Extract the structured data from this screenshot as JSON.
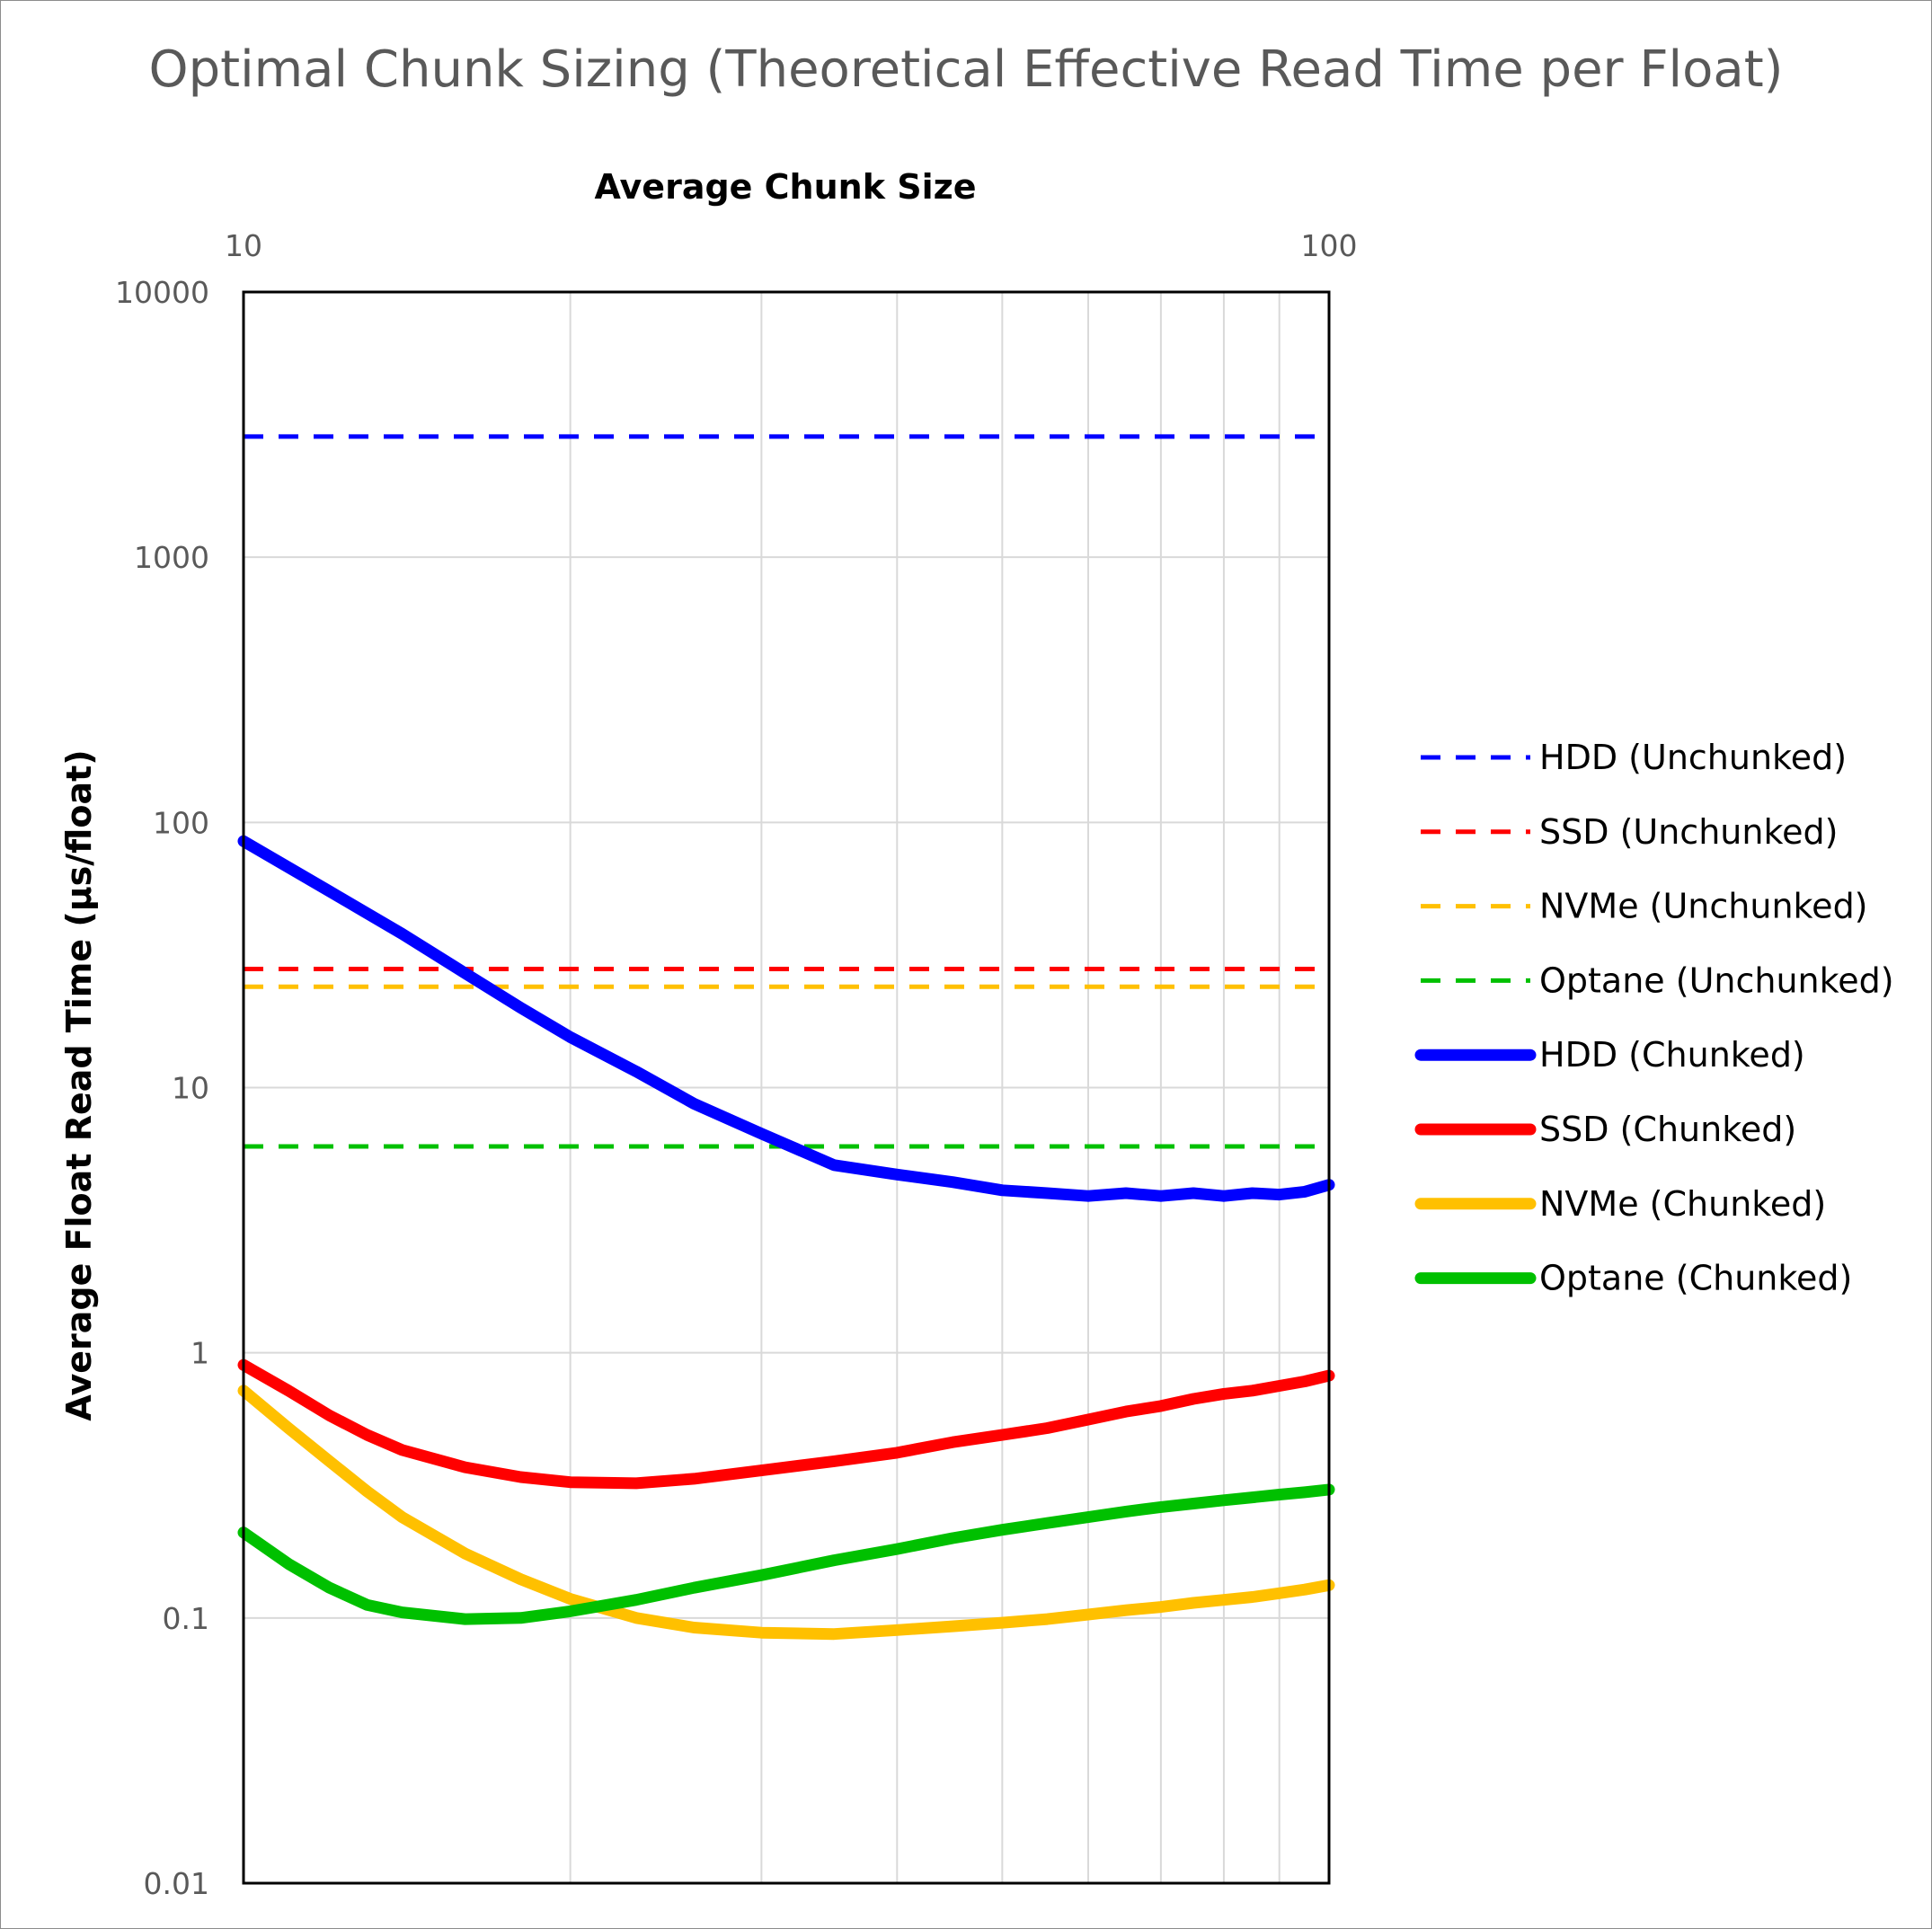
{
  "chart_data": {
    "type": "line",
    "title": "Optimal Chunk Sizing (Theoretical Effective Read Time per Float)",
    "xlabel": "Average Chunk Size",
    "ylabel": "Average Float Read Time (µs/float)",
    "x_scale": "log",
    "y_scale": "log",
    "xlim": [
      10,
      100
    ],
    "ylim": [
      0.01,
      10000
    ],
    "x_ticks": [
      "10",
      "100"
    ],
    "y_ticks": [
      "0.01",
      "0.1",
      "1",
      "10",
      "100",
      "1000",
      "10000"
    ],
    "x_axis_position": "top",
    "grid": true,
    "legend_position": "right",
    "series": [
      {
        "name": "HDD (Unchunked)",
        "color": "#0000ff",
        "style": "dashed",
        "x": [
          10,
          100
        ],
        "y": [
          2850,
          2850
        ]
      },
      {
        "name": "SSD (Unchunked)",
        "color": "#ff0000",
        "style": "dashed",
        "x": [
          10,
          100
        ],
        "y": [
          28,
          28
        ]
      },
      {
        "name": "NVMe (Unchunked)",
        "color": "#ffc000",
        "style": "dashed",
        "x": [
          10,
          100
        ],
        "y": [
          24,
          24
        ]
      },
      {
        "name": "Optane (Unchunked)",
        "color": "#00c000",
        "style": "dashed",
        "x": [
          10,
          100
        ],
        "y": [
          6,
          6
        ]
      },
      {
        "name": "HDD (Chunked)",
        "color": "#0000ff",
        "style": "solid",
        "x": [
          10,
          12,
          14,
          16,
          18,
          20,
          23,
          26,
          30,
          35,
          40,
          45,
          50,
          55,
          60,
          65,
          70,
          75,
          80,
          85,
          90,
          95,
          100
        ],
        "y": [
          85,
          55,
          38,
          27,
          20,
          15.5,
          11.5,
          8.7,
          6.7,
          5.1,
          4.7,
          4.4,
          4.1,
          4.0,
          3.9,
          4.0,
          3.9,
          4.0,
          3.9,
          4.0,
          3.95,
          4.05,
          4.3
        ]
      },
      {
        "name": "SSD (Chunked)",
        "color": "#ff0000",
        "style": "solid",
        "x": [
          10,
          11,
          12,
          13,
          14,
          16,
          18,
          20,
          23,
          26,
          30,
          35,
          40,
          45,
          50,
          55,
          60,
          65,
          70,
          75,
          80,
          85,
          90,
          95,
          100
        ],
        "y": [
          0.9,
          0.72,
          0.58,
          0.49,
          0.43,
          0.37,
          0.34,
          0.325,
          0.322,
          0.335,
          0.36,
          0.39,
          0.42,
          0.46,
          0.49,
          0.52,
          0.56,
          0.6,
          0.63,
          0.67,
          0.7,
          0.72,
          0.75,
          0.78,
          0.82
        ]
      },
      {
        "name": "NVMe (Chunked)",
        "color": "#ffc000",
        "style": "solid",
        "x": [
          10,
          11,
          12,
          13,
          14,
          16,
          18,
          20,
          23,
          26,
          30,
          35,
          40,
          45,
          50,
          55,
          60,
          65,
          70,
          75,
          80,
          85,
          90,
          95,
          100
        ],
        "y": [
          0.72,
          0.52,
          0.39,
          0.3,
          0.24,
          0.175,
          0.14,
          0.118,
          0.1,
          0.092,
          0.088,
          0.087,
          0.09,
          0.093,
          0.096,
          0.099,
          0.103,
          0.107,
          0.11,
          0.114,
          0.117,
          0.12,
          0.124,
          0.128,
          0.133
        ]
      },
      {
        "name": "Optane (Chunked)",
        "color": "#00c000",
        "style": "solid",
        "x": [
          10,
          11,
          12,
          13,
          14,
          16,
          18,
          20,
          23,
          26,
          30,
          35,
          40,
          45,
          50,
          55,
          60,
          65,
          70,
          75,
          80,
          85,
          90,
          95,
          100
        ],
        "y": [
          0.21,
          0.16,
          0.13,
          0.112,
          0.105,
          0.099,
          0.1,
          0.106,
          0.117,
          0.13,
          0.145,
          0.165,
          0.182,
          0.2,
          0.215,
          0.228,
          0.24,
          0.252,
          0.262,
          0.27,
          0.278,
          0.285,
          0.292,
          0.298,
          0.305
        ]
      }
    ]
  }
}
